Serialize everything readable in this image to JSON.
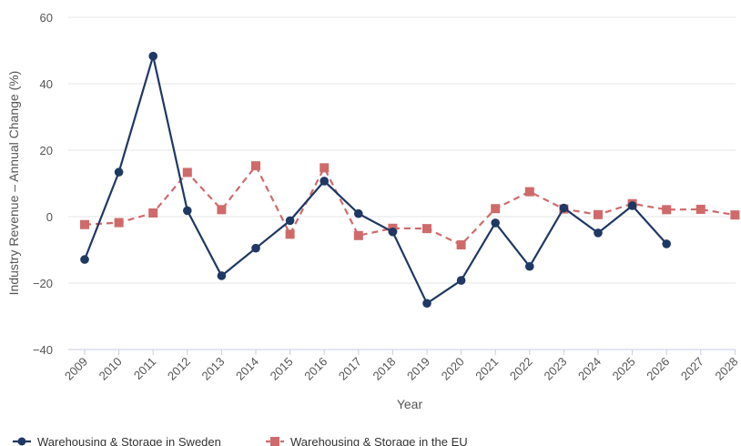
{
  "chart_data": {
    "type": "line",
    "title": "",
    "xlabel": "Year",
    "ylabel": "Industry Revenue – Annual Change (%)",
    "ylim": [
      -40,
      60
    ],
    "yticks": [
      60,
      40,
      20,
      0,
      -20,
      -40
    ],
    "ytick_labels": [
      "60",
      "40",
      "20",
      "0",
      "−20",
      "−40"
    ],
    "categories": [
      "2009",
      "2010",
      "2011",
      "2012",
      "2013",
      "2014",
      "2015",
      "2016",
      "2017",
      "2018",
      "2019",
      "2020",
      "2021",
      "2022",
      "2023",
      "2024",
      "2025",
      "2026",
      "2027",
      "2028"
    ],
    "grid": true,
    "legend_position": "bottom-left",
    "series": [
      {
        "name": "Warehousing & Storage in Sweden",
        "color": "#1f3864",
        "marker": "circle",
        "line_style": "solid",
        "values": [
          -12.9,
          13.4,
          48.3,
          1.8,
          -17.8,
          -9.5,
          -1.2,
          10.7,
          0.9,
          -4.6,
          -26.1,
          -19.2,
          -1.9,
          -15.0,
          2.6,
          -4.9,
          3.3,
          -8.2,
          null,
          null
        ]
      },
      {
        "name": "Warehousing & Storage in the EU",
        "color": "#d06a6a",
        "marker": "square",
        "line_style": "dashed",
        "values": [
          -2.4,
          -1.8,
          1.1,
          13.3,
          2.1,
          15.3,
          -5.3,
          14.7,
          -5.7,
          -3.5,
          -3.6,
          -8.5,
          2.4,
          7.5,
          2.3,
          0.6,
          3.9,
          2.1,
          2.2,
          0.5
        ]
      }
    ]
  }
}
